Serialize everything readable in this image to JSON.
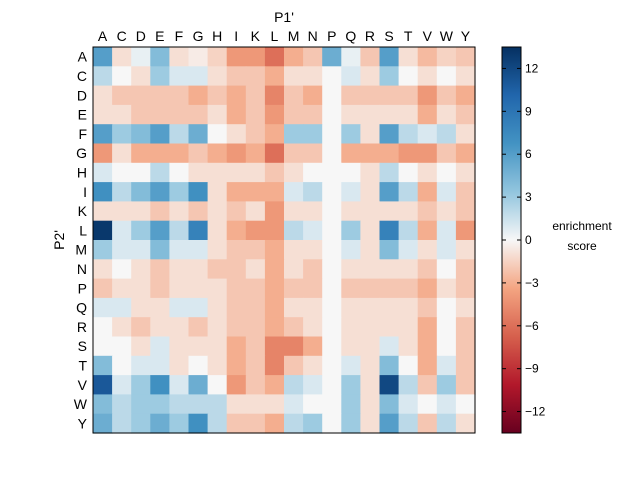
{
  "chart_data": {
    "type": "heatmap",
    "title": "",
    "xlabel": "P1'",
    "ylabel": "P2'",
    "x_categories": [
      "A",
      "C",
      "D",
      "E",
      "F",
      "G",
      "H",
      "I",
      "K",
      "L",
      "M",
      "N",
      "P",
      "Q",
      "R",
      "S",
      "T",
      "V",
      "W",
      "Y"
    ],
    "y_categories": [
      "A",
      "C",
      "D",
      "E",
      "F",
      "G",
      "H",
      "I",
      "K",
      "L",
      "M",
      "N",
      "P",
      "Q",
      "R",
      "S",
      "T",
      "V",
      "W",
      "Y"
    ],
    "values": [
      [
        6,
        -1,
        0.5,
        4,
        -1,
        -0.5,
        -1.5,
        -4,
        -4,
        -6,
        -3,
        -2,
        5,
        0.5,
        -2,
        6,
        -1,
        -2.5,
        -1.5,
        -2
      ],
      [
        2,
        0,
        -1,
        3,
        1,
        1,
        -1,
        -2,
        -2,
        -3,
        -1,
        -1,
        0,
        1,
        -1,
        3,
        0,
        -1,
        0,
        -1
      ],
      [
        -1,
        -2,
        -2,
        -2,
        -2,
        -3,
        -2,
        -3,
        -2,
        -5,
        -2,
        -3,
        0,
        -2,
        -2,
        -2,
        -2,
        -4,
        -2,
        -3
      ],
      [
        -1,
        -1,
        -2,
        -2,
        -2,
        -2,
        -1,
        -3,
        -2,
        -4,
        -2,
        -2,
        0,
        -1,
        -1,
        -1,
        -1,
        -3,
        -1,
        -2
      ],
      [
        6,
        3,
        4,
        6,
        2,
        5,
        0,
        -1,
        -2,
        -3,
        3,
        3,
        0,
        3,
        -1,
        6,
        2,
        1,
        2,
        -1
      ],
      [
        -4,
        -1,
        -3,
        -3,
        -3,
        -2,
        -3,
        -4,
        -3,
        -6,
        -2,
        -2,
        0,
        -3,
        -3,
        -3,
        -4,
        -4,
        -2,
        -3
      ],
      [
        1,
        0,
        0,
        2,
        0,
        -1,
        -1,
        -1,
        -1,
        -2,
        -1,
        0,
        0,
        0,
        -1,
        2,
        0,
        -1,
        0,
        -1
      ],
      [
        7,
        2,
        4,
        6,
        3,
        7,
        -1,
        -3,
        -3,
        -3,
        1,
        2,
        0,
        1,
        -1,
        6,
        2,
        -3,
        1,
        -2
      ],
      [
        -1,
        -1,
        -1,
        -2,
        -1,
        -2,
        -1,
        -2,
        -1,
        -4,
        -1,
        -1,
        0,
        -1,
        -1,
        -1,
        -1,
        -2,
        -1,
        -2
      ],
      [
        13,
        1,
        3,
        6,
        2,
        8,
        -1,
        -3,
        -4,
        -4,
        2,
        1,
        0,
        3,
        -1,
        8,
        2,
        -3,
        1,
        -4
      ],
      [
        3,
        1,
        1,
        4,
        1,
        1,
        -1,
        -2,
        -2,
        -3,
        -1,
        -1,
        0,
        1,
        -1,
        4,
        1,
        -1,
        1,
        -1
      ],
      [
        -1,
        0,
        -1,
        -2,
        -1,
        -1,
        -2,
        -2,
        -1,
        -3,
        -1,
        -2,
        0,
        -1,
        -1,
        -1,
        -1,
        -2,
        0,
        -2
      ],
      [
        -2,
        -1,
        -1,
        -2,
        -1,
        -1,
        -1,
        -2,
        -2,
        -3,
        -2,
        -2,
        0,
        -2,
        -2,
        -2,
        -2,
        -3,
        -1,
        -2
      ],
      [
        1,
        1,
        -1,
        -1,
        1,
        1,
        -1,
        -2,
        -2,
        -3,
        -1,
        -1,
        0,
        -1,
        -1,
        -1,
        -1,
        -2,
        0,
        -1
      ],
      [
        0,
        -1,
        -2,
        -1,
        -1,
        -2,
        -1,
        -2,
        -2,
        -3,
        -2,
        -1,
        0,
        -1,
        -1,
        -1,
        -1,
        -3,
        0,
        -2
      ],
      [
        0,
        0,
        -1,
        1,
        -1,
        -1,
        -1,
        -3,
        -2,
        -5,
        -5,
        -3,
        0,
        -1,
        -1,
        1,
        -1,
        -3,
        0,
        -2
      ],
      [
        4,
        0,
        1,
        1,
        -1,
        0,
        -1,
        -3,
        -2,
        -5,
        -2,
        -1,
        0,
        1,
        -1,
        4,
        0,
        -3,
        1,
        -2
      ],
      [
        11,
        1,
        3,
        7,
        1,
        5,
        0,
        -4,
        -2,
        -3,
        2,
        1,
        0,
        3,
        -1,
        12,
        2,
        -2,
        3,
        -2
      ],
      [
        4,
        2,
        3,
        3,
        2,
        2,
        2,
        -1,
        -1,
        -1,
        1,
        0,
        0,
        3,
        -1,
        4,
        1,
        0,
        1,
        0
      ],
      [
        5,
        2,
        3,
        5,
        3,
        7,
        2,
        -2,
        -2,
        -3,
        2,
        3,
        0,
        3,
        -1,
        6,
        2,
        -2,
        2,
        -1
      ]
    ],
    "colorbar": {
      "label_lines": [
        "enrichment",
        "score"
      ],
      "range": [
        -13.5,
        13.5
      ],
      "ticks": [
        -12,
        -9,
        -6,
        -3,
        0,
        3,
        6,
        9,
        12
      ],
      "tick_labels": [
        "−12",
        "−9",
        "−6",
        "−3",
        "0",
        "3",
        "6",
        "9",
        "12"
      ],
      "colormap": "RdBu"
    },
    "grid": false,
    "legend": "none"
  }
}
